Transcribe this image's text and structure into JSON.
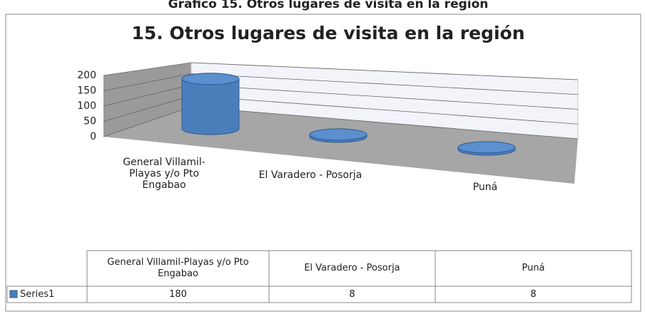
{
  "chart_data": {
    "type": "bar3d",
    "supertitle": "Gráfico 15. Otros lugares de visita en la región",
    "title": "15. Otros lugares de visita en la región",
    "categories": [
      "General Villamil-Playas y/o Pto Engabao",
      "El Varadero - Posorja",
      "Puná"
    ],
    "series": [
      {
        "name": "Series1",
        "color": "#4a7ebb",
        "values": [
          180,
          8,
          8
        ]
      }
    ],
    "ylim": [
      0,
      200
    ],
    "yticks": [
      0,
      50,
      100,
      150,
      200
    ],
    "grid": true,
    "data_table": true
  }
}
